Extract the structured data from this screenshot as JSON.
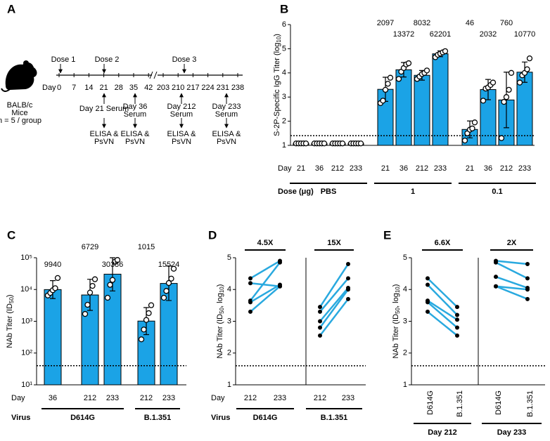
{
  "panel_a": {
    "panel": "A",
    "mouse_label": [
      "BALB/c",
      "Mice"
    ],
    "group_size": "n = 5 / group",
    "axis_label": "Day",
    "days": [
      0,
      7,
      14,
      21,
      28,
      35,
      42,
      203,
      210,
      217,
      224,
      231,
      238
    ],
    "doses": [
      "Dose 1",
      "Dose 2",
      "Dose 3"
    ],
    "sera": [
      [
        "Day 21 Serum"
      ],
      [
        "Day 36",
        "Serum"
      ],
      [
        "Day 212",
        "Serum"
      ],
      [
        "Day 233",
        "Serum"
      ]
    ],
    "assay": [
      "ELISA &",
      "PsVN"
    ]
  },
  "chart_data": [
    {
      "type": "bar",
      "panel": "B",
      "ylabel": [
        "S-2P-Specific IgG Titer (log",
        "10",
        ")"
      ],
      "xlabel": "Day",
      "group_label": "Dose (μg)",
      "ylim": [
        1,
        6
      ],
      "yticks": [
        1,
        2,
        3,
        4,
        5,
        6
      ],
      "lod": 1.4,
      "color": "#1ba3e6",
      "groups": [
        {
          "name": "PBS",
          "categories": [
            "21",
            "36",
            "212",
            "233"
          ],
          "values": [
            1.08,
            1.08,
            1.08,
            1.08
          ],
          "points": [
            [
              1.08,
              1.08,
              1.08,
              1.08,
              1.08
            ],
            [
              1.08,
              1.08,
              1.08,
              1.08,
              1.08
            ],
            [
              1.08,
              1.08,
              1.08,
              1.08,
              1.08
            ],
            [
              1.08,
              1.08,
              1.08,
              1.08,
              1.08
            ]
          ]
        },
        {
          "name": "1",
          "categories": [
            "21",
            "36",
            "212",
            "233"
          ],
          "values": [
            3.32,
            4.13,
            3.9,
            4.79
          ],
          "errors": [
            0.5,
            0.3,
            0.2,
            0.12
          ],
          "gmt": [
            2097,
            13372,
            8032,
            62201
          ],
          "points": [
            [
              2.75,
              2.85,
              3.3,
              3.55,
              3.8
            ],
            [
              3.75,
              4.05,
              4.2,
              4.35,
              4.4
            ],
            [
              3.75,
              3.85,
              3.95,
              4.0,
              4.1
            ],
            [
              4.65,
              4.75,
              4.8,
              4.85,
              4.9
            ]
          ]
        },
        {
          "name": "0.1",
          "categories": [
            "21",
            "36",
            "212",
            "233"
          ],
          "values": [
            1.66,
            3.31,
            2.88,
            4.03
          ],
          "errors": [
            0.35,
            0.42,
            1.15,
            0.42
          ],
          "gmt": [
            46,
            2032,
            760,
            10770
          ],
          "points": [
            [
              1.2,
              1.5,
              1.65,
              1.7,
              1.95
            ],
            [
              2.85,
              3.35,
              3.4,
              3.5,
              3.6
            ],
            [
              1.3,
              2.8,
              3.0,
              3.3,
              4.0
            ],
            [
              3.6,
              3.9,
              4.0,
              4.15,
              4.6
            ]
          ]
        }
      ]
    },
    {
      "type": "bar",
      "panel": "C",
      "log_scale": true,
      "ylabel": [
        "NAb Titer (ID",
        "50",
        ")"
      ],
      "xlabel": "Day",
      "group_label": "Virus",
      "ylim": [
        10,
        100000
      ],
      "yticks": [
        {
          "value": 10,
          "label": "10¹"
        },
        {
          "value": 100,
          "label": "10²"
        },
        {
          "value": 1000,
          "label": "10³"
        },
        {
          "value": 10000,
          "label": "10⁴"
        },
        {
          "value": 100000,
          "label": "10⁵"
        }
      ],
      "lod": 40,
      "color": "#1ba3e6",
      "groups": [
        {
          "name": "D614G",
          "categories": [
            "36",
            "212",
            "233"
          ],
          "values": [
            9940,
            6729,
            30386
          ],
          "errors": [
            [
              5200,
              19000
            ],
            [
              2200,
              21000
            ],
            [
              9000,
              100000
            ]
          ],
          "points": [
            [
              6500,
              7800,
              9500,
              11000,
              23000
            ],
            [
              1700,
              3300,
              8000,
              13000,
              21000
            ],
            [
              5500,
              14000,
              20000,
              75000,
              85000
            ]
          ]
        },
        {
          "name": "B.1.351",
          "categories": [
            "212",
            "233"
          ],
          "values": [
            1015,
            15524
          ],
          "errors": [
            [
              380,
              2700
            ],
            [
              4500,
              55000
            ]
          ],
          "points": [
            [
              270,
              550,
              1100,
              1800,
              3200
            ],
            [
              5500,
              9000,
              16000,
              22000,
              45000
            ]
          ]
        }
      ]
    },
    {
      "type": "paired",
      "panel": "D",
      "ylabel": [
        "NAb Titer (ID",
        "50",
        ", log",
        "10",
        ")"
      ],
      "xlabel": "Day",
      "group_label": "Virus",
      "ylim": [
        1,
        5
      ],
      "yticks": [
        1,
        2,
        3,
        4,
        5
      ],
      "lod": 1.6,
      "color": "#29a9df",
      "categories": [
        "212",
        "233"
      ],
      "groups": [
        {
          "name": "D614G",
          "fold": "4.5X",
          "pairs": [
            [
              4.35,
              4.9
            ],
            [
              4.2,
              4.1
            ],
            [
              3.65,
              4.85
            ],
            [
              3.6,
              4.15
            ],
            [
              3.3,
              4.1
            ]
          ]
        },
        {
          "name": "B.1.351",
          "fold": "15X",
          "pairs": [
            [
              3.45,
              4.8
            ],
            [
              3.3,
              4.35
            ],
            [
              3.0,
              4.05
            ],
            [
              2.8,
              4.0
            ],
            [
              2.55,
              3.7
            ]
          ]
        }
      ]
    },
    {
      "type": "paired",
      "panel": "E",
      "ylabel": [
        "NAb Titer (ID",
        "50",
        ", log",
        "10",
        ")"
      ],
      "ylim": [
        1,
        5
      ],
      "yticks": [
        1,
        2,
        3,
        4,
        5
      ],
      "lod": 1.6,
      "color": "#29a9df",
      "categories": [
        "D614G",
        "B.1.351"
      ],
      "groups": [
        {
          "name": "Day 212",
          "fold": "6.6X",
          "pairs": [
            [
              4.35,
              3.45
            ],
            [
              4.15,
              3.2
            ],
            [
              3.65,
              3.05
            ],
            [
              3.6,
              2.8
            ],
            [
              3.3,
              2.55
            ]
          ]
        },
        {
          "name": "Day 233",
          "fold": "2X",
          "pairs": [
            [
              4.9,
              4.8
            ],
            [
              4.85,
              4.35
            ],
            [
              4.4,
              4.05
            ],
            [
              4.1,
              4.0
            ],
            [
              4.1,
              3.7
            ]
          ]
        }
      ]
    }
  ]
}
